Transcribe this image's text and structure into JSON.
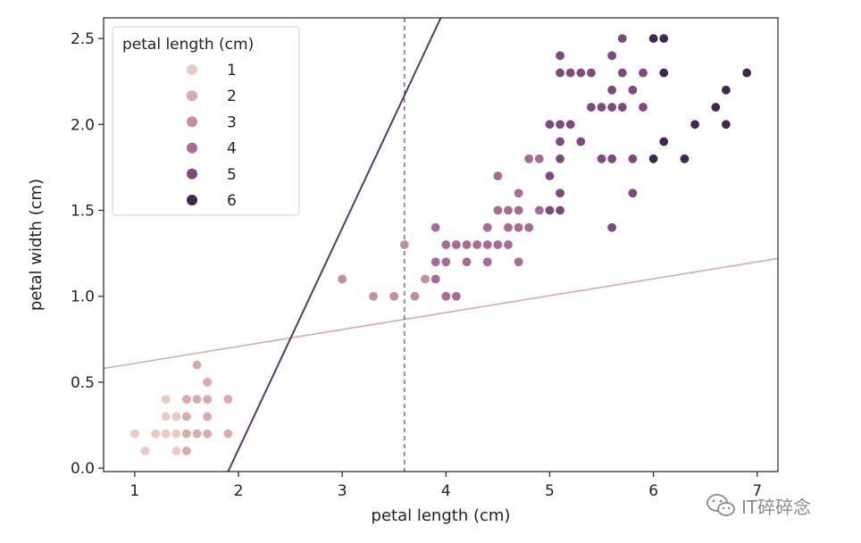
{
  "colors": {
    "hue": [
      "#e8c9c3",
      "#d9aaa8",
      "#c48e9f",
      "#a96b93",
      "#7e4a7c",
      "#3e2a50"
    ],
    "boundary_pink": "#d6aaab",
    "boundary_purple": "#553a6b",
    "threshold": "#444444"
  },
  "watermark": {
    "text": "IT碎碎念",
    "icon": "wechat-icon"
  },
  "chart_data": {
    "type": "scatter",
    "xlabel": "petal length (cm)",
    "ylabel": "petal width (cm)",
    "xlim": [
      0.7,
      7.2
    ],
    "ylim": [
      -0.02,
      2.62
    ],
    "xticks": [
      "1",
      "2",
      "3",
      "4",
      "5",
      "6",
      "7"
    ],
    "yticks": [
      "0.0",
      "0.5",
      "1.0",
      "1.5",
      "2.0",
      "2.5"
    ],
    "grid": false,
    "legend": {
      "title": "petal length (cm)",
      "placement": "top-left",
      "entries": [
        "1",
        "2",
        "3",
        "4",
        "5",
        "6"
      ]
    },
    "points": [
      [
        1.0,
        0.2
      ],
      [
        1.1,
        0.1
      ],
      [
        1.2,
        0.2
      ],
      [
        1.3,
        0.2
      ],
      [
        1.3,
        0.3
      ],
      [
        1.3,
        0.4
      ],
      [
        1.4,
        0.2
      ],
      [
        1.4,
        0.3
      ],
      [
        1.4,
        0.1
      ],
      [
        1.5,
        0.2
      ],
      [
        1.5,
        0.1
      ],
      [
        1.5,
        0.3
      ],
      [
        1.5,
        0.4
      ],
      [
        1.6,
        0.2
      ],
      [
        1.6,
        0.4
      ],
      [
        1.6,
        0.6
      ],
      [
        1.7,
        0.2
      ],
      [
        1.7,
        0.3
      ],
      [
        1.7,
        0.4
      ],
      [
        1.7,
        0.5
      ],
      [
        1.9,
        0.2
      ],
      [
        1.9,
        0.4
      ],
      [
        3.0,
        1.1
      ],
      [
        3.3,
        1.0
      ],
      [
        3.5,
        1.0
      ],
      [
        3.6,
        1.3
      ],
      [
        3.7,
        1.0
      ],
      [
        3.8,
        1.1
      ],
      [
        3.9,
        1.1
      ],
      [
        3.9,
        1.2
      ],
      [
        3.9,
        1.4
      ],
      [
        4.0,
        1.0
      ],
      [
        4.0,
        1.2
      ],
      [
        4.0,
        1.3
      ],
      [
        4.1,
        1.0
      ],
      [
        4.1,
        1.3
      ],
      [
        4.2,
        1.2
      ],
      [
        4.2,
        1.3
      ],
      [
        4.3,
        1.3
      ],
      [
        4.4,
        1.2
      ],
      [
        4.4,
        1.3
      ],
      [
        4.4,
        1.4
      ],
      [
        4.5,
        1.3
      ],
      [
        4.5,
        1.5
      ],
      [
        4.5,
        1.7
      ],
      [
        4.6,
        1.3
      ],
      [
        4.6,
        1.4
      ],
      [
        4.6,
        1.5
      ],
      [
        4.7,
        1.2
      ],
      [
        4.7,
        1.4
      ],
      [
        4.7,
        1.5
      ],
      [
        4.7,
        1.6
      ],
      [
        4.8,
        1.4
      ],
      [
        4.8,
        1.8
      ],
      [
        4.9,
        1.5
      ],
      [
        4.9,
        1.8
      ],
      [
        5.0,
        1.5
      ],
      [
        5.0,
        1.7
      ],
      [
        5.0,
        2.0
      ],
      [
        5.1,
        1.5
      ],
      [
        5.1,
        1.6
      ],
      [
        5.1,
        1.8
      ],
      [
        5.1,
        1.9
      ],
      [
        5.1,
        2.0
      ],
      [
        5.1,
        2.3
      ],
      [
        5.1,
        2.4
      ],
      [
        5.2,
        2.0
      ],
      [
        5.2,
        2.3
      ],
      [
        5.3,
        1.9
      ],
      [
        5.3,
        2.3
      ],
      [
        5.4,
        2.1
      ],
      [
        5.4,
        2.3
      ],
      [
        5.5,
        1.8
      ],
      [
        5.5,
        2.1
      ],
      [
        5.6,
        1.4
      ],
      [
        5.6,
        1.8
      ],
      [
        5.6,
        2.1
      ],
      [
        5.6,
        2.2
      ],
      [
        5.6,
        2.4
      ],
      [
        5.7,
        2.1
      ],
      [
        5.7,
        2.3
      ],
      [
        5.7,
        2.5
      ],
      [
        5.8,
        1.6
      ],
      [
        5.8,
        1.8
      ],
      [
        5.8,
        2.2
      ],
      [
        5.9,
        2.1
      ],
      [
        5.9,
        2.3
      ],
      [
        6.0,
        1.8
      ],
      [
        6.0,
        2.5
      ],
      [
        6.1,
        1.9
      ],
      [
        6.1,
        2.3
      ],
      [
        6.1,
        2.5
      ],
      [
        6.3,
        1.8
      ],
      [
        6.4,
        2.0
      ],
      [
        6.6,
        2.1
      ],
      [
        6.7,
        2.0
      ],
      [
        6.7,
        2.2
      ],
      [
        6.9,
        2.3
      ]
    ],
    "threshold_x": 3.6,
    "boundaries": [
      {
        "x": [
          0.7,
          7.2
        ],
        "y": [
          0.58,
          1.22
        ]
      },
      {
        "x": [
          1.9,
          3.95
        ],
        "y": [
          -0.02,
          2.62
        ]
      }
    ]
  }
}
